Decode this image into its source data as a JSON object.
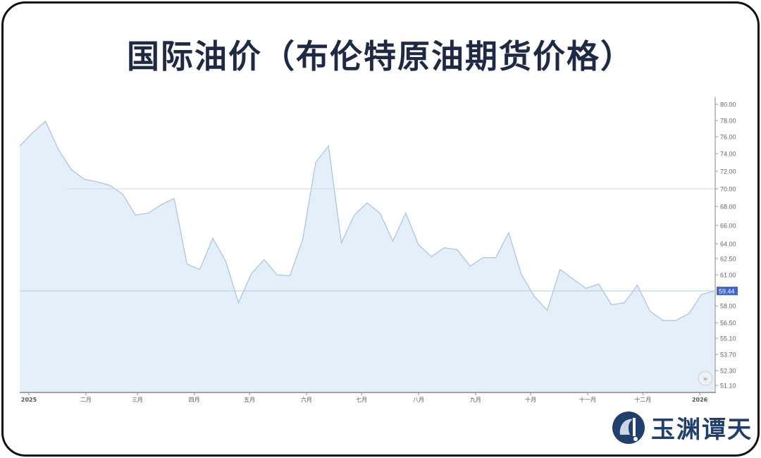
{
  "title": "国际油价（布伦特原油期货价格）",
  "logo": {
    "text": "玉渊谭天"
  },
  "chart_data": {
    "type": "area",
    "title": "国际油价（布伦特原油期货价格）",
    "xlabel": "",
    "ylabel": "",
    "x": [
      "2024-12-27",
      "2025-01-03",
      "2025-01-10",
      "2025-01-17",
      "2025-01-24",
      "2025-01-31",
      "2025-02-07",
      "2025-02-14",
      "2025-02-21",
      "2025-02-28",
      "2025-03-07",
      "2025-03-14",
      "2025-03-21",
      "2025-03-28",
      "2025-04-04",
      "2025-04-11",
      "2025-04-18",
      "2025-04-25",
      "2025-05-02",
      "2025-05-09",
      "2025-05-16",
      "2025-05-23",
      "2025-05-30",
      "2025-06-06",
      "2025-06-13",
      "2025-06-20",
      "2025-06-27",
      "2025-07-04",
      "2025-07-11",
      "2025-07-18",
      "2025-07-25",
      "2025-08-01",
      "2025-08-08",
      "2025-08-15",
      "2025-08-22",
      "2025-08-29",
      "2025-09-05",
      "2025-09-12",
      "2025-09-19",
      "2025-09-26",
      "2025-10-03",
      "2025-10-10",
      "2025-10-17",
      "2025-10-24",
      "2025-10-31",
      "2025-11-07",
      "2025-11-14",
      "2025-11-21",
      "2025-11-28",
      "2025-12-05",
      "2025-12-12",
      "2025-12-19",
      "2025-12-26",
      "2026-01-02",
      "2026-01-09"
    ],
    "values": [
      74.9,
      76.5,
      77.9,
      74.5,
      72.2,
      71.1,
      70.8,
      70.4,
      69.4,
      67.1,
      67.3,
      68.2,
      68.9,
      62.0,
      61.5,
      64.6,
      62.3,
      58.3,
      61.1,
      62.4,
      61.0,
      60.9,
      64.5,
      73.0,
      74.9,
      64.1,
      67.1,
      68.4,
      67.3,
      64.3,
      67.3,
      63.9,
      62.7,
      63.6,
      63.4,
      61.8,
      62.6,
      62.6,
      65.2,
      61.0,
      58.9,
      57.6,
      61.5,
      60.6,
      59.7,
      60.1,
      58.1,
      58.3,
      60.0,
      57.5,
      56.7,
      56.7,
      57.3,
      59.1,
      59.44
    ],
    "ylim": [
      51.1,
      80.0
    ],
    "yticks": [
      "80.00",
      "78.00",
      "76.00",
      "74.00",
      "72.00",
      "70.00",
      "68.00",
      "66.00",
      "64.00",
      "62.50",
      "61.00",
      "58.00",
      "56.50",
      "55.10",
      "53.70",
      "52.30",
      "51.10"
    ],
    "xticks": [
      {
        "date": "2025-01-01",
        "label": "2025"
      },
      {
        "date": "2025-02-01",
        "label": "二月"
      },
      {
        "date": "2025-03-01",
        "label": "三月"
      },
      {
        "date": "2025-04-01",
        "label": "四月"
      },
      {
        "date": "2025-05-01",
        "label": "五月"
      },
      {
        "date": "2025-06-01",
        "label": "六月"
      },
      {
        "date": "2025-07-01",
        "label": "七月"
      },
      {
        "date": "2025-08-01",
        "label": "八月"
      },
      {
        "date": "2025-09-01",
        "label": "九月"
      },
      {
        "date": "2025-10-01",
        "label": "十月"
      },
      {
        "date": "2025-11-01",
        "label": "十一月"
      },
      {
        "date": "2025-12-01",
        "label": "十二月"
      },
      {
        "date": "2026-01-01",
        "label": "2026"
      }
    ],
    "reference_line": 70.0,
    "last_price_label": "59.44",
    "grid": false,
    "colors": {
      "line": "#a8c8e2",
      "fill": "#e4eff9",
      "badge": "#3d63d6",
      "title": "#1e2a45"
    }
  }
}
